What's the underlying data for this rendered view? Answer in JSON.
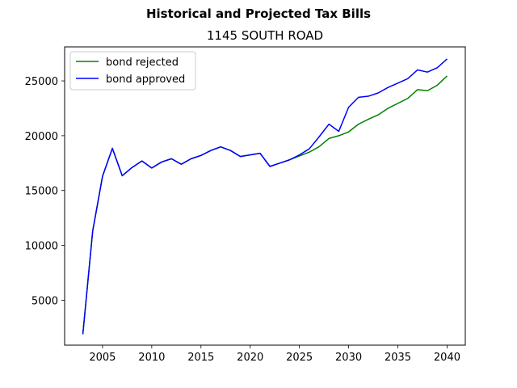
{
  "chart_data": {
    "type": "line",
    "suptitle": "Historical and Projected Tax Bills",
    "title": "1145 SOUTH ROAD",
    "xlabel": "",
    "ylabel": "",
    "xlim": [
      2001.15,
      2041.85
    ],
    "ylim": [
      900,
      28100
    ],
    "x_ticks": [
      2005,
      2010,
      2015,
      2020,
      2025,
      2030,
      2035,
      2040
    ],
    "y_ticks": [
      5000,
      10000,
      15000,
      20000,
      25000
    ],
    "x_tick_labels": [
      "2005",
      "2010",
      "2015",
      "2020",
      "2025",
      "2030",
      "2035",
      "2040"
    ],
    "y_tick_labels": [
      "5000",
      "10000",
      "15000",
      "20000",
      "25000"
    ],
    "grid": false,
    "legend_position": "top-left",
    "x": [
      2003,
      2004,
      2005,
      2006,
      2007,
      2008,
      2009,
      2010,
      2011,
      2012,
      2013,
      2014,
      2015,
      2016,
      2017,
      2018,
      2019,
      2020,
      2021,
      2022,
      2023,
      2024,
      2025,
      2026,
      2027,
      2028,
      2029,
      2030,
      2031,
      2032,
      2033,
      2034,
      2035,
      2036,
      2037,
      2038,
      2039,
      2040
    ],
    "series": [
      {
        "name": "bond rejected",
        "color": "#008000",
        "values": [
          1900,
          11300,
          16300,
          18850,
          16350,
          17100,
          17700,
          17050,
          17600,
          17900,
          17400,
          17900,
          18200,
          18650,
          18980,
          18650,
          18100,
          18250,
          18400,
          17200,
          17500,
          17800,
          18150,
          18500,
          19000,
          19750,
          20000,
          20350,
          21050,
          21500,
          21900,
          22500,
          22950,
          23400,
          24200,
          24100,
          24600,
          25450
        ]
      },
      {
        "name": "bond approved",
        "color": "#0000ff",
        "values": [
          1900,
          11300,
          16300,
          18850,
          16350,
          17100,
          17700,
          17050,
          17600,
          17900,
          17400,
          17900,
          18200,
          18650,
          18980,
          18650,
          18100,
          18250,
          18400,
          17200,
          17500,
          17800,
          18250,
          18800,
          19900,
          21050,
          20400,
          22600,
          23500,
          23600,
          23900,
          24400,
          24800,
          25200,
          26000,
          25800,
          26200,
          27000
        ]
      }
    ]
  }
}
